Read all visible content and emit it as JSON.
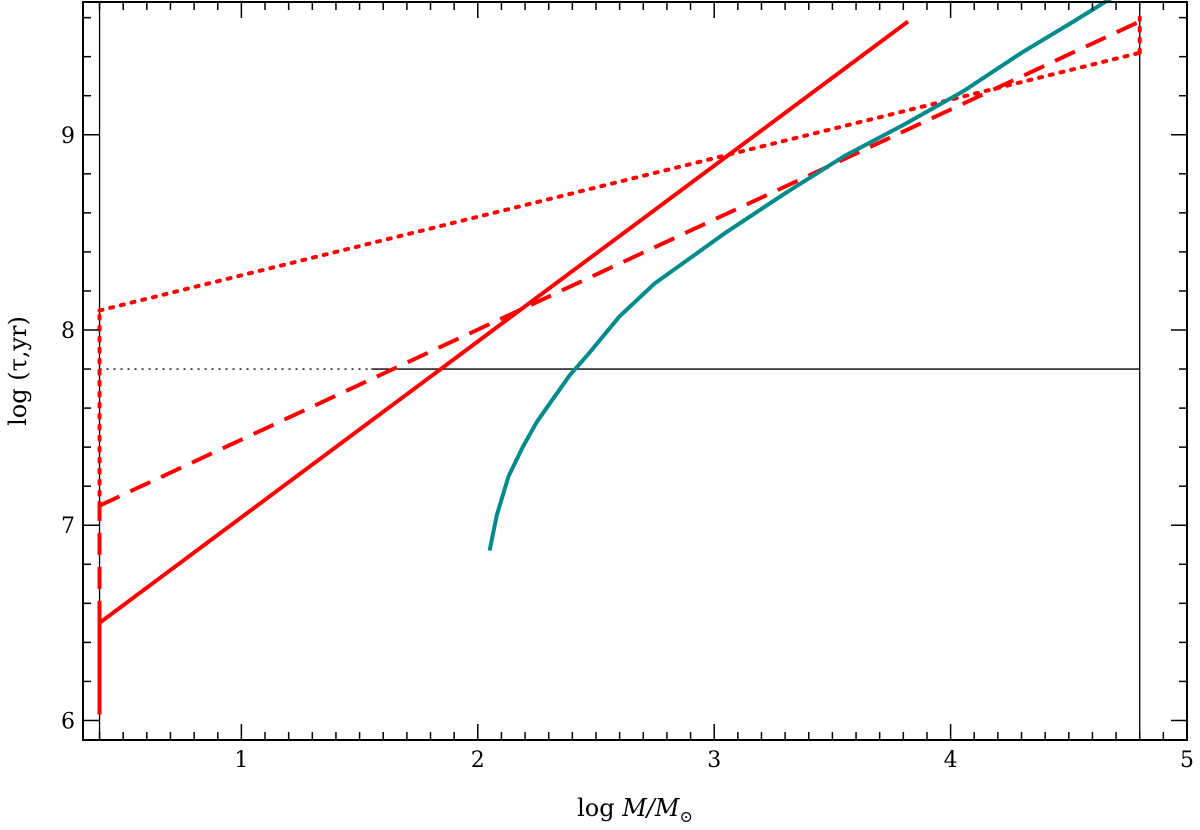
{
  "chart_data": {
    "type": "line",
    "xlabel_prefix": "log ",
    "xlabel_var": "M/M",
    "xlabel_sub": "⊙",
    "ylabel": "log (τ,yr)",
    "xlim": [
      0.33,
      5.0
    ],
    "ylim": [
      5.9,
      9.68
    ],
    "xticks": [
      1,
      2,
      3,
      4,
      5
    ],
    "xtick_labels": [
      "1",
      "2",
      "3",
      "4",
      "5"
    ],
    "yticks": [
      6,
      7,
      8,
      9
    ],
    "ytick_labels": [
      "6",
      "7",
      "8",
      "9"
    ],
    "x_minor_step": 0.1,
    "y_minor_step": 0.2,
    "grid": false,
    "legend": "none",
    "series": [
      {
        "style": "solid",
        "color": "#ff0000",
        "x": [
          0.4,
          3.82
        ],
        "y": [
          6.5,
          9.58
        ]
      },
      {
        "style": "dashed",
        "color": "#ff0000",
        "x": [
          0.4,
          4.8
        ],
        "y": [
          7.1,
          9.58
        ]
      },
      {
        "style": "dotted",
        "color": "#ff0000",
        "x": [
          0.4,
          4.8
        ],
        "y": [
          8.1,
          9.42
        ]
      },
      {
        "style": "solid",
        "color": "#008b8b",
        "x": [
          2.05,
          2.08,
          2.13,
          2.19,
          2.25,
          2.32,
          2.39,
          2.47,
          2.6,
          2.75,
          2.9,
          3.05,
          3.3,
          3.55,
          3.8,
          4.05,
          4.3,
          4.52,
          4.68
        ],
        "y": [
          6.87,
          7.05,
          7.25,
          7.4,
          7.53,
          7.65,
          7.77,
          7.88,
          8.07,
          8.24,
          8.37,
          8.5,
          8.7,
          8.89,
          9.05,
          9.22,
          9.42,
          9.58,
          9.7
        ]
      }
    ],
    "reference_lines": [
      {
        "kind": "vertical",
        "x": 0.4,
        "y": [
          5.9,
          9.68
        ],
        "color": "#000000",
        "style": "solid"
      },
      {
        "kind": "vertical",
        "x": 4.8,
        "y": [
          5.9,
          9.68
        ],
        "color": "#000000",
        "style": "solid"
      },
      {
        "kind": "horizontal",
        "y": 7.8,
        "x": [
          0.4,
          1.55
        ],
        "color": "#000000",
        "style": "dotted"
      },
      {
        "kind": "horizontal",
        "y": 7.8,
        "x": [
          1.55,
          4.8
        ],
        "color": "#000000",
        "style": "solid"
      }
    ],
    "edge_segments": [
      {
        "x": 0.4,
        "y": [
          6.03,
          6.5
        ],
        "style": "solid",
        "color": "#ff0000"
      },
      {
        "x": 0.4,
        "y": [
          6.5,
          7.1
        ],
        "style": "dashed",
        "color": "#ff0000"
      },
      {
        "x": 0.4,
        "y": [
          7.1,
          8.1
        ],
        "style": "dotted",
        "color": "#ff0000"
      },
      {
        "x": 4.8,
        "y": [
          9.42,
          9.6
        ],
        "style": "dotted",
        "color": "#ff0000"
      }
    ]
  }
}
